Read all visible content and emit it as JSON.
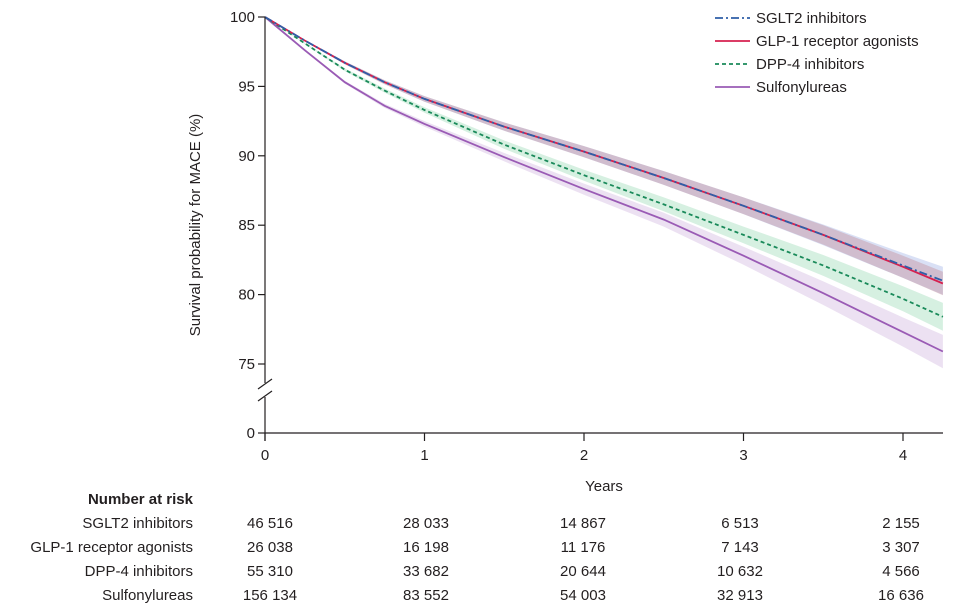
{
  "chart_data": {
    "type": "line",
    "xlabel": "Years",
    "ylabel": "Survival probability for MACE (%)",
    "xlim": [
      0,
      4.25
    ],
    "ylim": [
      75,
      100
    ],
    "axis_break": true,
    "y_ticks": [
      {
        "value": 100,
        "label": "100"
      },
      {
        "value": 95,
        "label": "95"
      },
      {
        "value": 90,
        "label": "90"
      },
      {
        "value": 85,
        "label": "85"
      },
      {
        "value": 80,
        "label": "80"
      },
      {
        "value": 75,
        "label": "75"
      },
      {
        "value": 0,
        "label": "0"
      }
    ],
    "x_ticks": [
      {
        "value": 0,
        "label": "0"
      },
      {
        "value": 1,
        "label": "1"
      },
      {
        "value": 2,
        "label": "2"
      },
      {
        "value": 3,
        "label": "3"
      },
      {
        "value": 4,
        "label": "4"
      }
    ],
    "legend_position": "top-right",
    "x": [
      0,
      0.25,
      0.5,
      0.75,
      1,
      1.5,
      2,
      2.5,
      3,
      3.5,
      4,
      4.25
    ],
    "series": [
      {
        "name": "SGLT2 inhibitors",
        "color": "#2e5fa8",
        "dash": "8,3,2,3",
        "band": "#b9c6ec",
        "values": [
          100,
          98.3,
          96.7,
          95.3,
          94.1,
          92.1,
          90.3,
          88.4,
          86.4,
          84.3,
          82.1,
          81.0
        ],
        "band_width": [
          0,
          0.05,
          0.1,
          0.15,
          0.2,
          0.3,
          0.4,
          0.5,
          0.6,
          0.75,
          0.9,
          1.0
        ]
      },
      {
        "name": "GLP-1 receptor agonists",
        "color": "#d6204f",
        "dash": "",
        "band": "#c9a0ad",
        "values": [
          100,
          98.3,
          96.7,
          95.3,
          94.1,
          92.1,
          90.3,
          88.4,
          86.4,
          84.3,
          82.0,
          80.8
        ],
        "band_width": [
          0,
          0.05,
          0.1,
          0.15,
          0.2,
          0.3,
          0.4,
          0.5,
          0.6,
          0.7,
          0.8,
          0.85
        ]
      },
      {
        "name": "DPP-4 inhibitors",
        "color": "#1a8a5a",
        "dash": "4,3",
        "band": "#b5e3c8",
        "values": [
          100,
          98.1,
          96.2,
          94.7,
          93.3,
          90.8,
          88.6,
          86.5,
          84.3,
          82.1,
          79.7,
          78.4
        ],
        "band_width": [
          0,
          0.05,
          0.1,
          0.15,
          0.2,
          0.3,
          0.4,
          0.5,
          0.6,
          0.75,
          0.9,
          1.0
        ]
      },
      {
        "name": "Sulfonylureas",
        "color": "#9a5bb5",
        "dash": "",
        "band": "#dcc8e8",
        "values": [
          100,
          97.6,
          95.3,
          93.6,
          92.3,
          89.9,
          87.6,
          85.4,
          82.8,
          80.1,
          77.3,
          75.9
        ],
        "band_width": [
          0,
          0.05,
          0.1,
          0.15,
          0.2,
          0.3,
          0.4,
          0.5,
          0.65,
          0.85,
          1.05,
          1.2
        ]
      }
    ]
  },
  "risk_table": {
    "title": "Number at risk",
    "rows": [
      {
        "name": "SGLT2 inhibitors",
        "values": [
          "46 516",
          "28 033",
          "14 867",
          "6 513",
          "2 155"
        ]
      },
      {
        "name": "GLP-1 receptor agonists",
        "values": [
          "26 038",
          "16 198",
          "11 176",
          "7 143",
          "3 307"
        ]
      },
      {
        "name": "DPP-4 inhibitors",
        "values": [
          "55 310",
          "33 682",
          "20 644",
          "10 632",
          "4 566"
        ]
      },
      {
        "name": "Sulfonylureas",
        "values": [
          "156 134",
          "83 552",
          "54 003",
          "32 913",
          "16 636"
        ]
      }
    ]
  }
}
